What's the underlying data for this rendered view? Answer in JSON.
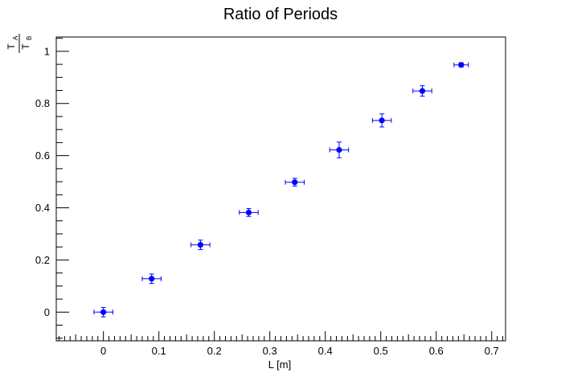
{
  "chart_data": {
    "type": "scatter",
    "title": "Ratio of Periods",
    "xlabel": "L [m]",
    "ylabel": {
      "numerator": "T",
      "numerator_sub": "A",
      "denominator": "T",
      "denominator_sub": "B"
    },
    "xlim": [
      -0.085,
      0.725
    ],
    "ylim": [
      -0.11,
      1.055
    ],
    "x_ticks": [
      0,
      0.1,
      0.2,
      0.3,
      0.4,
      0.5,
      0.6,
      0.7
    ],
    "x_tick_labels": [
      "0",
      "0.1",
      "0.2",
      "0.3",
      "0.4",
      "0.5",
      "0.6",
      "0.7"
    ],
    "y_ticks": [
      0,
      0.2,
      0.4,
      0.6,
      0.8,
      1
    ],
    "y_tick_labels": [
      "0",
      "0.2",
      "0.4",
      "0.6",
      "0.8",
      "1"
    ],
    "grid": false,
    "marker_color": "#0000ff",
    "series": [
      {
        "points": [
          {
            "x": 0.0,
            "y": 0.0,
            "xerr": 0.017,
            "yerr": 0.018
          },
          {
            "x": 0.087,
            "y": 0.128,
            "xerr": 0.017,
            "yerr": 0.018
          },
          {
            "x": 0.175,
            "y": 0.258,
            "xerr": 0.017,
            "yerr": 0.018
          },
          {
            "x": 0.262,
            "y": 0.382,
            "xerr": 0.017,
            "yerr": 0.015
          },
          {
            "x": 0.345,
            "y": 0.498,
            "xerr": 0.017,
            "yerr": 0.015
          },
          {
            "x": 0.425,
            "y": 0.622,
            "xerr": 0.017,
            "yerr": 0.03
          },
          {
            "x": 0.502,
            "y": 0.735,
            "xerr": 0.017,
            "yerr": 0.025
          },
          {
            "x": 0.575,
            "y": 0.848,
            "xerr": 0.017,
            "yerr": 0.02
          },
          {
            "x": 0.645,
            "y": 0.948,
            "xerr": 0.013,
            "yerr": 0.008
          }
        ]
      }
    ]
  }
}
